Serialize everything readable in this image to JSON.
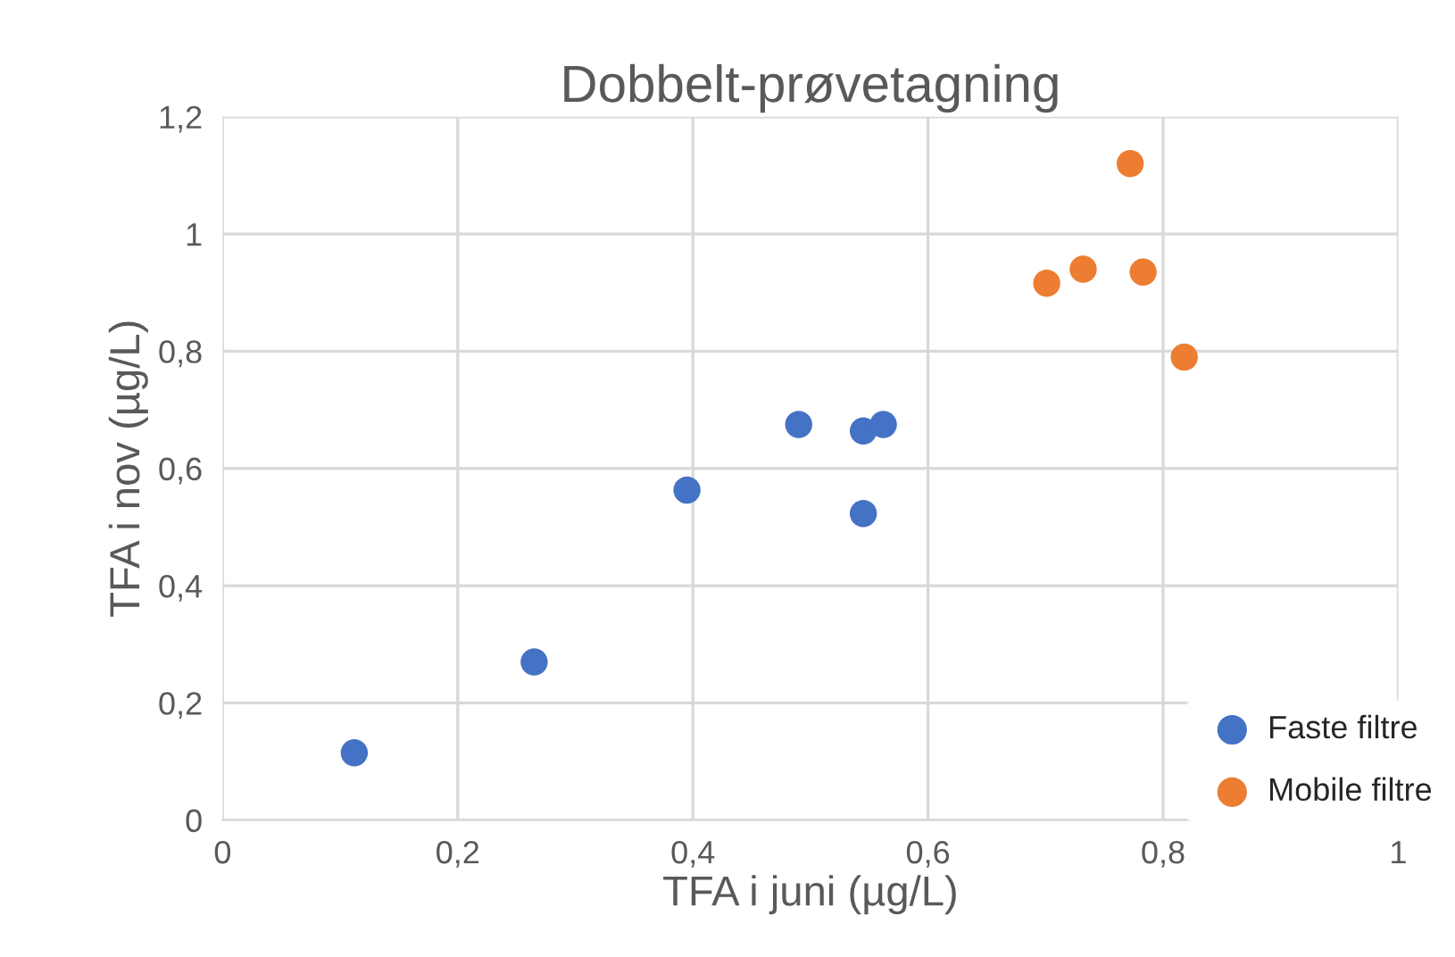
{
  "chart_data": {
    "type": "scatter",
    "title": "Dobbelt-prøvetagning",
    "xlabel": "TFA i juni (µg/L)",
    "ylabel": "TFA i nov (µg/L)",
    "series": [
      {
        "name": "Faste filtre",
        "color": "#4472c4",
        "x": [
          0.112,
          0.265,
          0.395,
          0.49,
          0.545,
          0.562,
          0.545
        ],
        "values": [
          0.115,
          0.27,
          0.563,
          0.675,
          0.664,
          0.675,
          0.523
        ]
      },
      {
        "name": "Mobile filtre",
        "color": "#ed7d31",
        "x": [
          0.701,
          0.732,
          0.772,
          0.783,
          0.818
        ],
        "values": [
          0.916,
          0.94,
          1.12,
          0.935,
          0.79
        ]
      }
    ],
    "xlim": [
      0,
      1
    ],
    "xticks": [
      0,
      {
        "value": 0.2,
        "label": "0,2"
      },
      {
        "value": 0.4,
        "label": "0,4"
      },
      {
        "value": 0.6,
        "label": "0,6"
      },
      {
        "value": 0.8,
        "label": "0,8"
      },
      1
    ],
    "ylim": [
      0,
      1.2
    ],
    "yticks": [
      0,
      {
        "value": 0.2,
        "label": "0,2"
      },
      {
        "value": 0.4,
        "label": "0,4"
      },
      {
        "value": 0.6,
        "label": "0,6"
      },
      {
        "value": 0.8,
        "label": "0,8"
      },
      1,
      {
        "value": 1.2,
        "label": "1,2"
      }
    ],
    "grid": true,
    "legend": "bottom right",
    "marker": "circle"
  }
}
